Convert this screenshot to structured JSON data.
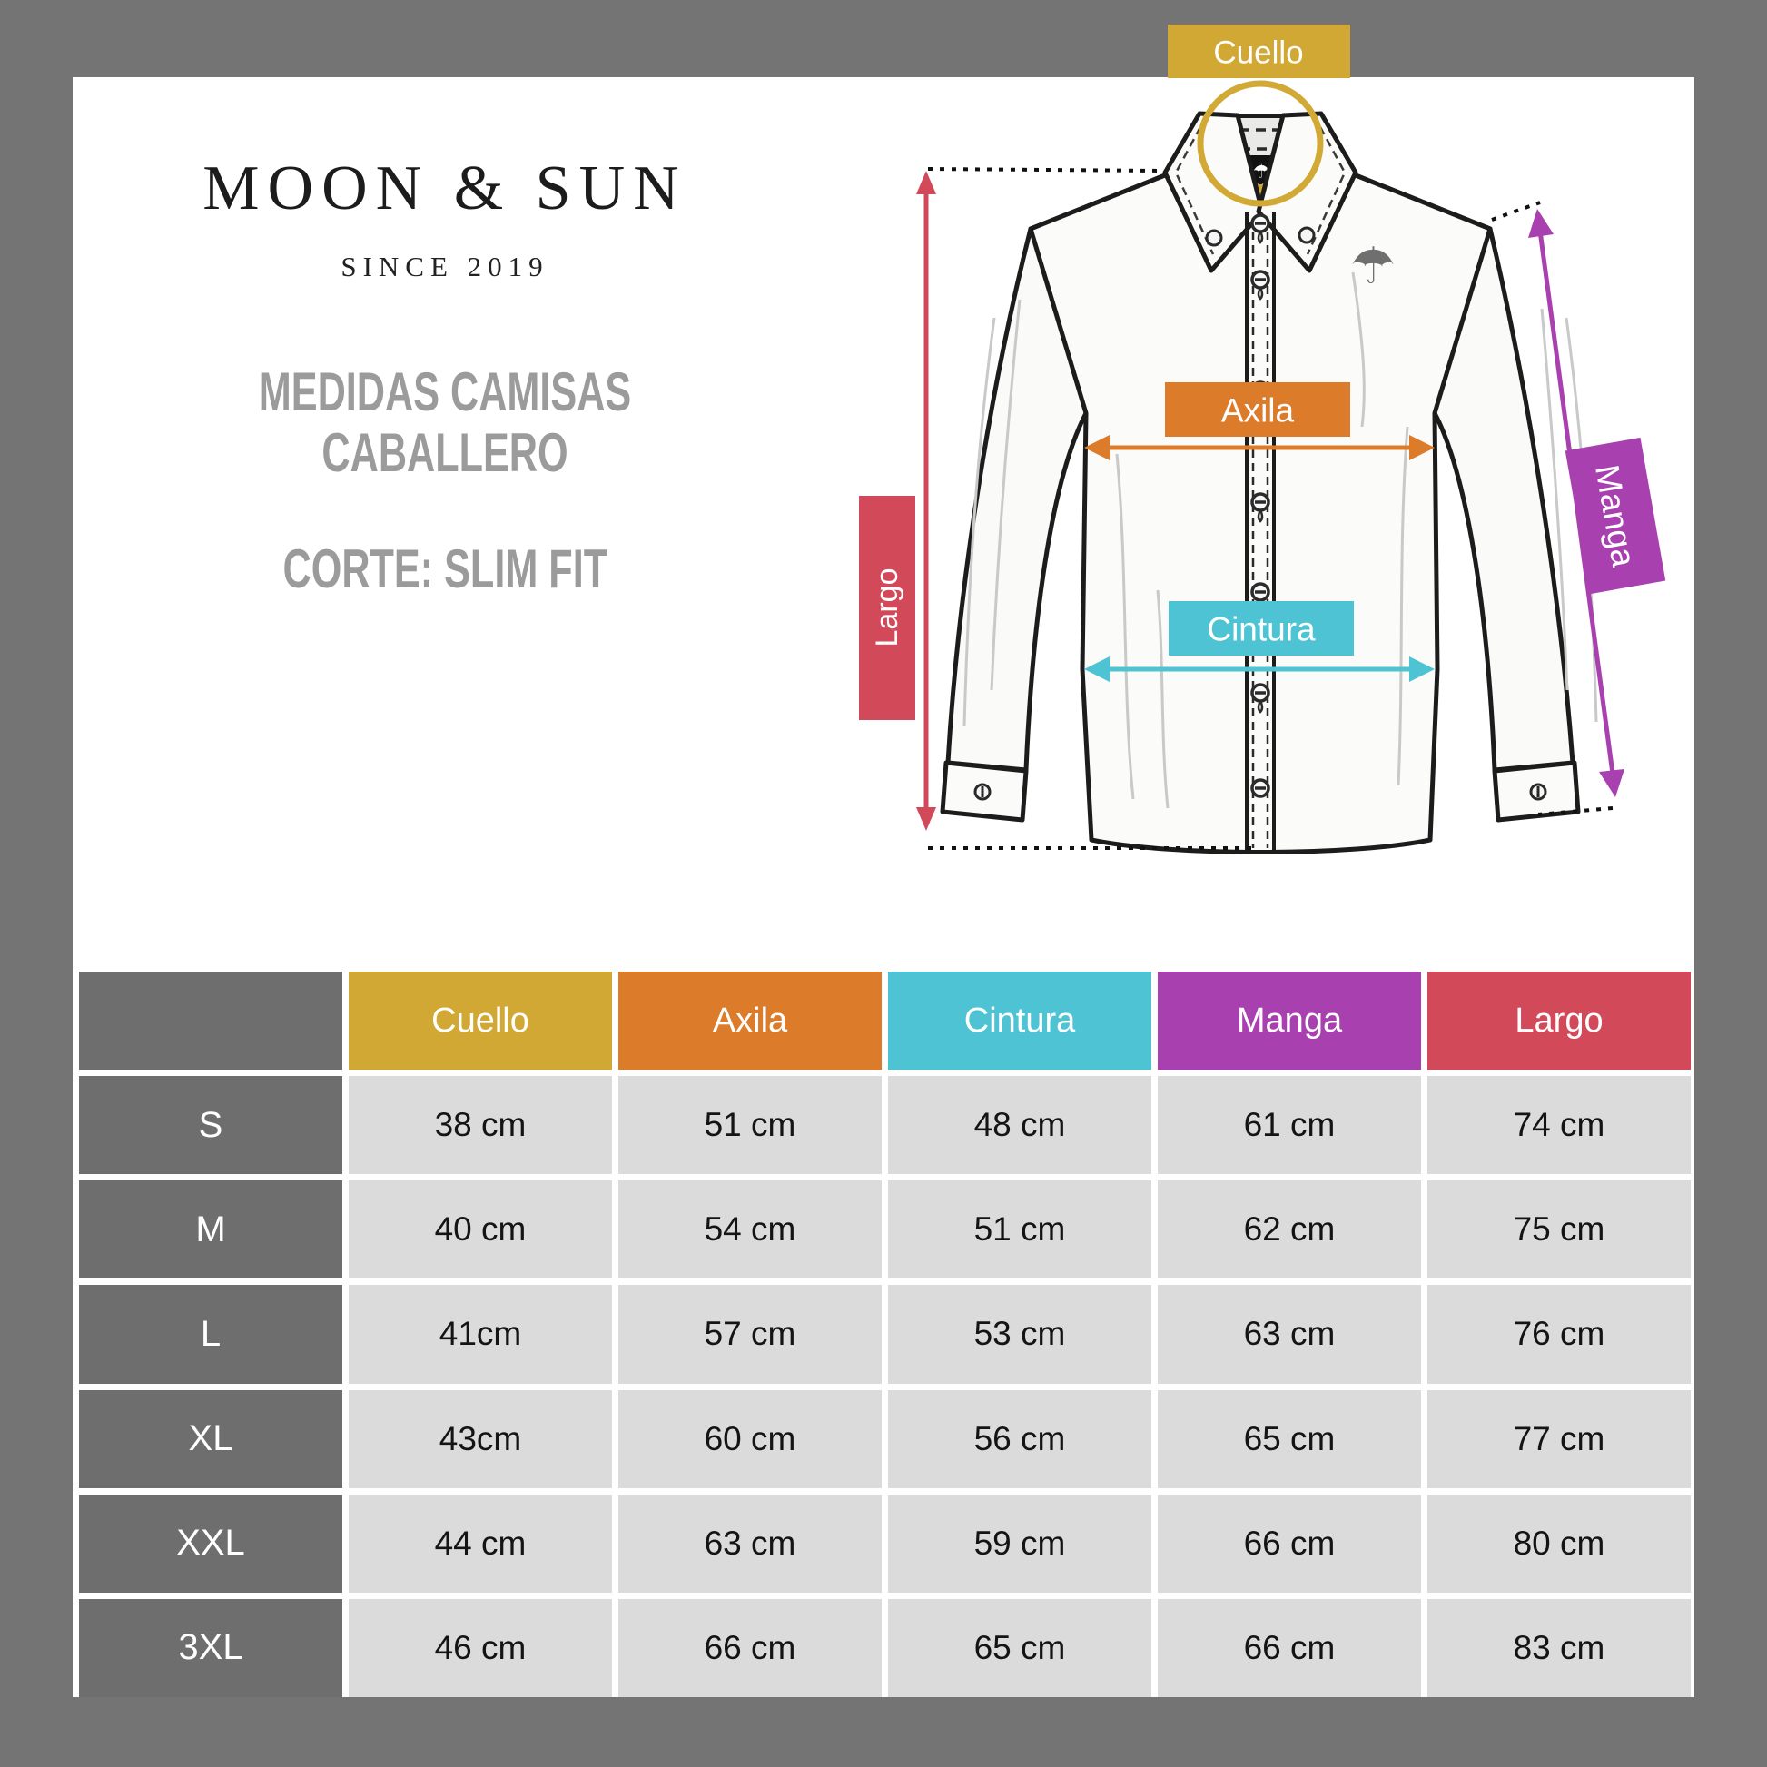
{
  "brand": {
    "name": "MOON & SUN",
    "since": "SINCE 2019",
    "subtitle_line1": "MEDIDAS CAMISAS",
    "subtitle_line2": "CABALLERO",
    "fit": "CORTE: SLIM FIT"
  },
  "diagram": {
    "labels": {
      "cuello": "Cuello",
      "axila": "Axila",
      "cintura": "Cintura",
      "manga": "Manga",
      "largo": "Largo"
    },
    "colors": {
      "cuello": "#D0A833",
      "axila": "#DC7B2A",
      "cintura": "#4EC3D4",
      "manga": "#A840B0",
      "largo": "#D2495A",
      "frame_gray": "#747474",
      "cell_gray": "#6E6E6E",
      "cell_light": "#DBDBDB"
    },
    "icons": {
      "collar_tag_umbrella": "umbrella-icon",
      "chest_logo": "umbrella-icon"
    }
  },
  "table": {
    "headers": [
      "",
      "Cuello",
      "Axila",
      "Cintura",
      "Manga",
      "Largo"
    ],
    "header_colors": [
      "#6E6E6E",
      "#D0A833",
      "#DC7B2A",
      "#4EC3D4",
      "#A840B0",
      "#D2495A"
    ],
    "rows": [
      {
        "size": "S",
        "values": [
          "38 cm",
          "51 cm",
          "48 cm",
          "61 cm",
          "74 cm"
        ]
      },
      {
        "size": "M",
        "values": [
          "40 cm",
          "54 cm",
          "51 cm",
          "62 cm",
          "75 cm"
        ]
      },
      {
        "size": "L",
        "values": [
          "41cm",
          "57 cm",
          "53 cm",
          "63 cm",
          "76 cm"
        ]
      },
      {
        "size": "XL",
        "values": [
          "43cm",
          "60 cm",
          "56 cm",
          "65 cm",
          "77 cm"
        ]
      },
      {
        "size": "XXL",
        "values": [
          "44 cm",
          "63 cm",
          "59 cm",
          "66 cm",
          "80 cm"
        ]
      },
      {
        "size": "3XL",
        "values": [
          "46 cm",
          "66 cm",
          "65 cm",
          "66 cm",
          "83 cm"
        ]
      }
    ]
  },
  "chart_data": {
    "type": "table",
    "title": "Medidas camisas caballero - Corte slim fit",
    "columns": [
      "Cuello",
      "Axila",
      "Cintura",
      "Manga",
      "Largo"
    ],
    "categories": [
      "S",
      "M",
      "L",
      "XL",
      "XXL",
      "3XL"
    ],
    "series": [
      {
        "name": "Cuello",
        "values": [
          38,
          40,
          41,
          43,
          44,
          46
        ]
      },
      {
        "name": "Axila",
        "values": [
          51,
          54,
          57,
          60,
          63,
          66
        ]
      },
      {
        "name": "Cintura",
        "values": [
          48,
          51,
          53,
          56,
          59,
          65
        ]
      },
      {
        "name": "Manga",
        "values": [
          61,
          62,
          63,
          65,
          66,
          66
        ]
      },
      {
        "name": "Largo",
        "values": [
          74,
          75,
          76,
          77,
          80,
          83
        ]
      }
    ],
    "unit": "cm"
  }
}
